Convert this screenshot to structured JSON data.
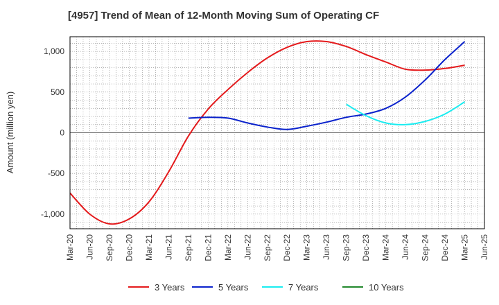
{
  "chart_data": {
    "type": "line",
    "title": "[4957]  Trend of Mean of 12-Month Moving Sum of Operating CF",
    "xlabel": "",
    "ylabel": "Amount (million yen)",
    "ylim": [
      -1180,
      1180
    ],
    "yticks": [
      -1000,
      -500,
      0,
      500,
      1000
    ],
    "ytick_labels": [
      "-1,000",
      "-500",
      "0",
      "500",
      "1,000"
    ],
    "categories": [
      "Mar-20",
      "Jun-20",
      "Sep-20",
      "Dec-20",
      "Mar-21",
      "Jun-21",
      "Sep-21",
      "Dec-21",
      "Mar-22",
      "Jun-22",
      "Sep-22",
      "Dec-22",
      "Mar-23",
      "Jun-23",
      "Sep-23",
      "Dec-23",
      "Mar-24",
      "Jun-24",
      "Sep-24",
      "Dec-24",
      "Mar-25",
      "Jun-25"
    ],
    "grid": true,
    "legend_position": "bottom",
    "series": [
      {
        "name": "3 Years",
        "color": "#e41a1c",
        "values": [
          -740,
          -1000,
          -1120,
          -1060,
          -850,
          -480,
          -40,
          290,
          530,
          740,
          920,
          1050,
          1120,
          1120,
          1060,
          960,
          870,
          780,
          770,
          790,
          830,
          null
        ]
      },
      {
        "name": "5 Years",
        "color": "#0a22cc",
        "values": [
          null,
          null,
          null,
          null,
          null,
          null,
          180,
          190,
          180,
          120,
          70,
          40,
          80,
          130,
          190,
          230,
          300,
          440,
          650,
          900,
          1120,
          null
        ]
      },
      {
        "name": "7 Years",
        "color": "#19ecf0",
        "values": [
          null,
          null,
          null,
          null,
          null,
          null,
          null,
          null,
          null,
          null,
          null,
          null,
          null,
          null,
          350,
          210,
          120,
          100,
          140,
          230,
          380,
          null
        ]
      },
      {
        "name": "10 Years",
        "color": "#22882c",
        "values": [
          null,
          null,
          null,
          null,
          null,
          null,
          null,
          null,
          null,
          null,
          null,
          null,
          null,
          null,
          null,
          null,
          null,
          null,
          null,
          null,
          null,
          null
        ]
      }
    ]
  }
}
